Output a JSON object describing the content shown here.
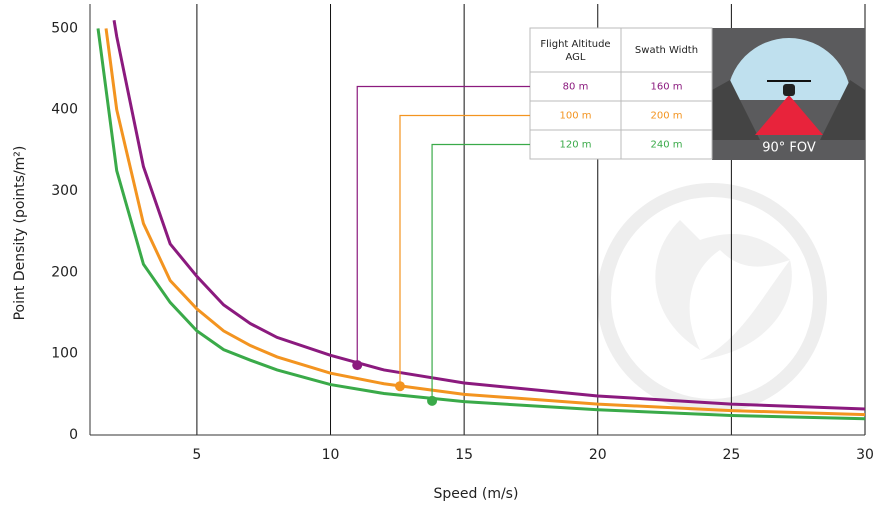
{
  "chart_data": {
    "type": "line",
    "xlabel": "Speed (m/s)",
    "ylabel": "Point Density (points/m²)",
    "xlim": [
      1,
      30
    ],
    "ylim": [
      0,
      530
    ],
    "xticks": [
      5,
      10,
      15,
      20,
      25,
      30
    ],
    "yticks": [
      0,
      100,
      200,
      300,
      400,
      500
    ],
    "grid": "x",
    "series": [
      {
        "name": "80 m",
        "swath": "160 m",
        "color": "#8b1a7e",
        "x": [
          1.9,
          2,
          3,
          4,
          5,
          6,
          7,
          8,
          10,
          12,
          15,
          20,
          25,
          30
        ],
        "values": [
          510,
          490,
          330,
          235,
          195,
          160,
          137,
          120,
          98,
          80,
          64,
          48,
          38,
          32
        ],
        "marker": {
          "x": 11,
          "y": 86
        }
      },
      {
        "name": "100 m",
        "swath": "200 m",
        "color": "#f39420",
        "x": [
          1.6,
          2,
          3,
          4,
          5,
          6,
          7,
          8,
          10,
          12,
          15,
          20,
          25,
          30
        ],
        "values": [
          500,
          400,
          260,
          190,
          155,
          128,
          110,
          96,
          76,
          63,
          50,
          38,
          30,
          25
        ],
        "marker": {
          "x": 12.6,
          "y": 60
        }
      },
      {
        "name": "120 m",
        "swath": "240 m",
        "color": "#3aaa49",
        "x": [
          1.3,
          2,
          3,
          4,
          5,
          6,
          7,
          8,
          10,
          12,
          15,
          20,
          25,
          30
        ],
        "values": [
          500,
          325,
          210,
          163,
          128,
          105,
          92,
          80,
          62,
          51,
          41,
          31,
          24,
          20
        ],
        "marker": {
          "x": 13.8,
          "y": 42
        }
      }
    ],
    "table_headers": [
      "Flight Altitude AGL",
      "Swath Width"
    ],
    "inset_label": "90° FOV"
  }
}
